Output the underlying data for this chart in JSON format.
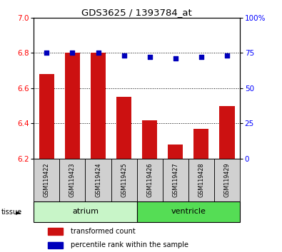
{
  "title": "GDS3625 / 1393784_at",
  "samples": [
    "GSM119422",
    "GSM119423",
    "GSM119424",
    "GSM119425",
    "GSM119426",
    "GSM119427",
    "GSM119428",
    "GSM119429"
  ],
  "transformed_counts": [
    6.68,
    6.8,
    6.8,
    6.55,
    6.42,
    6.28,
    6.37,
    6.5
  ],
  "percentile_ranks": [
    75,
    75,
    75,
    73,
    72,
    71,
    72,
    73
  ],
  "ylim_left": [
    6.2,
    7.0
  ],
  "ylim_right": [
    0,
    100
  ],
  "yticks_left": [
    6.2,
    6.4,
    6.6,
    6.8,
    7.0
  ],
  "yticks_right": [
    0,
    25,
    50,
    75,
    100
  ],
  "groups": [
    {
      "label": "atrium",
      "indices": [
        0,
        1,
        2,
        3
      ],
      "color": "#c8f5c8"
    },
    {
      "label": "ventricle",
      "indices": [
        4,
        5,
        6,
        7
      ],
      "color": "#55dd55"
    }
  ],
  "bar_color": "#cc1111",
  "dot_color": "#0000bb",
  "bar_width": 0.6,
  "bg_color": "#d0d0d0",
  "plot_bg": "#ffffff",
  "legend_items": [
    {
      "label": "transformed count",
      "color": "#cc1111"
    },
    {
      "label": "percentile rank within the sample",
      "color": "#0000bb"
    }
  ]
}
